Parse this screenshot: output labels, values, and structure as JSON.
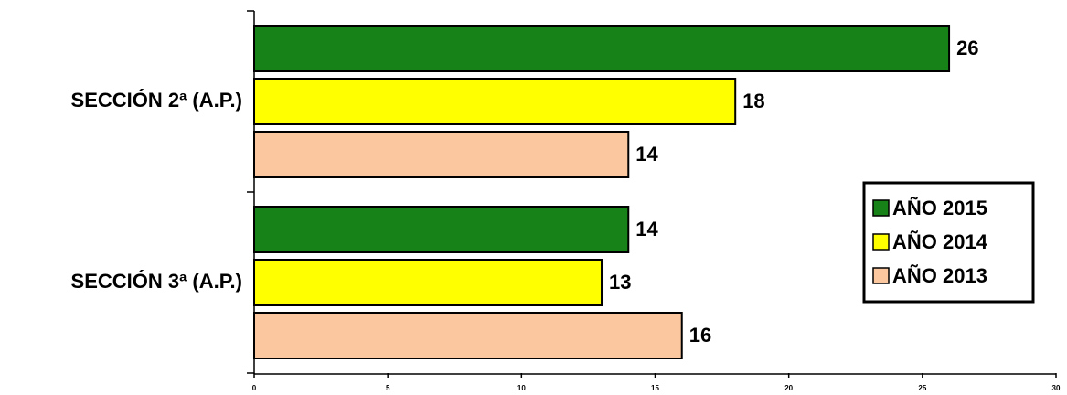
{
  "chart_data": {
    "type": "hbar",
    "categories": [
      "SECCIÓN 2ª (A.P.)",
      "SECCIÓN 3ª (A.P.)"
    ],
    "series": [
      {
        "name": "AÑO 2015",
        "color": "#178217",
        "values": [
          26,
          14
        ]
      },
      {
        "name": "AÑO 2014",
        "color": "#ffff00",
        "values": [
          18,
          13
        ]
      },
      {
        "name": "AÑO 2013",
        "color": "#fac79f",
        "values": [
          14,
          16
        ]
      }
    ],
    "xlim": [
      0,
      30
    ],
    "xticks": [
      0,
      5,
      10,
      15,
      20,
      25,
      30
    ],
    "legend": "right"
  }
}
